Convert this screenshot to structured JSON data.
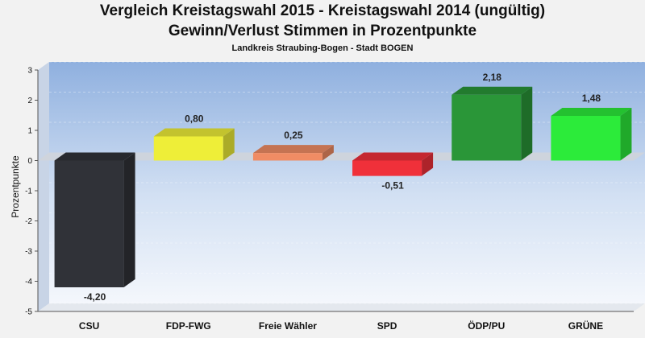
{
  "chart_data": {
    "type": "bar",
    "title": "Vergleich Kreistagswahl 2015 - Kreistagswahl 2014 (ungültig)",
    "subtitle": "Gewinn/Verlust Stimmen in Prozentpunkte",
    "caption": "Landkreis Straubing-Bogen - Stadt BOGEN",
    "xlabel": "",
    "ylabel": "Prozentpunkte",
    "ylim": [
      -5,
      3
    ],
    "yticks": [
      "3",
      "2",
      "1",
      "0",
      "-1",
      "-2",
      "-3",
      "-4",
      "-5"
    ],
    "categories": [
      "CSU",
      "FDP-FWG",
      "Freie Wähler",
      "SPD",
      "ÖDP/PU",
      "GRÜNE"
    ],
    "values": [
      -4.2,
      0.8,
      0.25,
      -0.51,
      2.18,
      1.48
    ],
    "value_labels": [
      "-4,20",
      "0,80",
      "0,25",
      "-0,51",
      "2,18",
      "1,48"
    ],
    "colors": [
      "#303238",
      "#eeee38",
      "#f08c64",
      "#f0303a",
      "#2a9638",
      "#2ceb3a"
    ],
    "legend": "none"
  }
}
